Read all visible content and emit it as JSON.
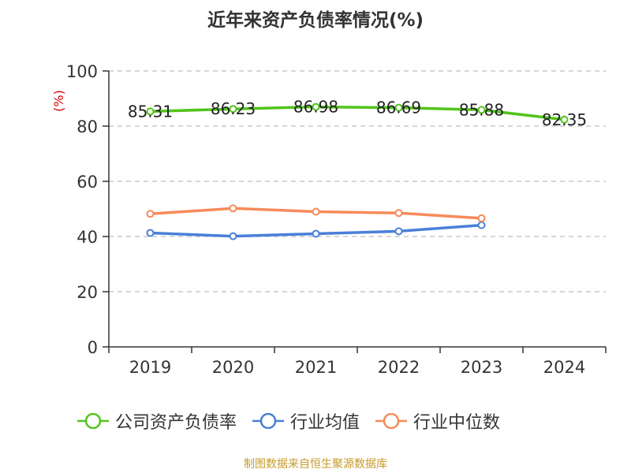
{
  "chart_data": {
    "type": "line",
    "title": "近年来资产负债率情况(%)",
    "ylabel": "(%)",
    "categories": [
      "2019",
      "2020",
      "2021",
      "2022",
      "2023",
      "2024"
    ],
    "ylim": [
      0,
      100
    ],
    "yticks": [
      0,
      20,
      40,
      60,
      80,
      100
    ],
    "grid": true,
    "legend_position": "bottom",
    "series": [
      {
        "name": "公司资产负债率",
        "color": "#52c41a",
        "values": [
          85.31,
          86.23,
          86.98,
          86.69,
          85.88,
          82.35
        ],
        "labels": [
          "85.31",
          "86.23",
          "86.98",
          "86.69",
          "85.88",
          "82.35"
        ]
      },
      {
        "name": "行业均值",
        "color": "#4a7fd8",
        "values": [
          41.3,
          40.1,
          41.0,
          41.9,
          44.1,
          null
        ]
      },
      {
        "name": "行业中位数",
        "color": "#f78a5a",
        "values": [
          48.2,
          50.2,
          49.0,
          48.5,
          46.6,
          null
        ]
      }
    ]
  },
  "source_note": "制图数据来自恒生聚源数据库"
}
